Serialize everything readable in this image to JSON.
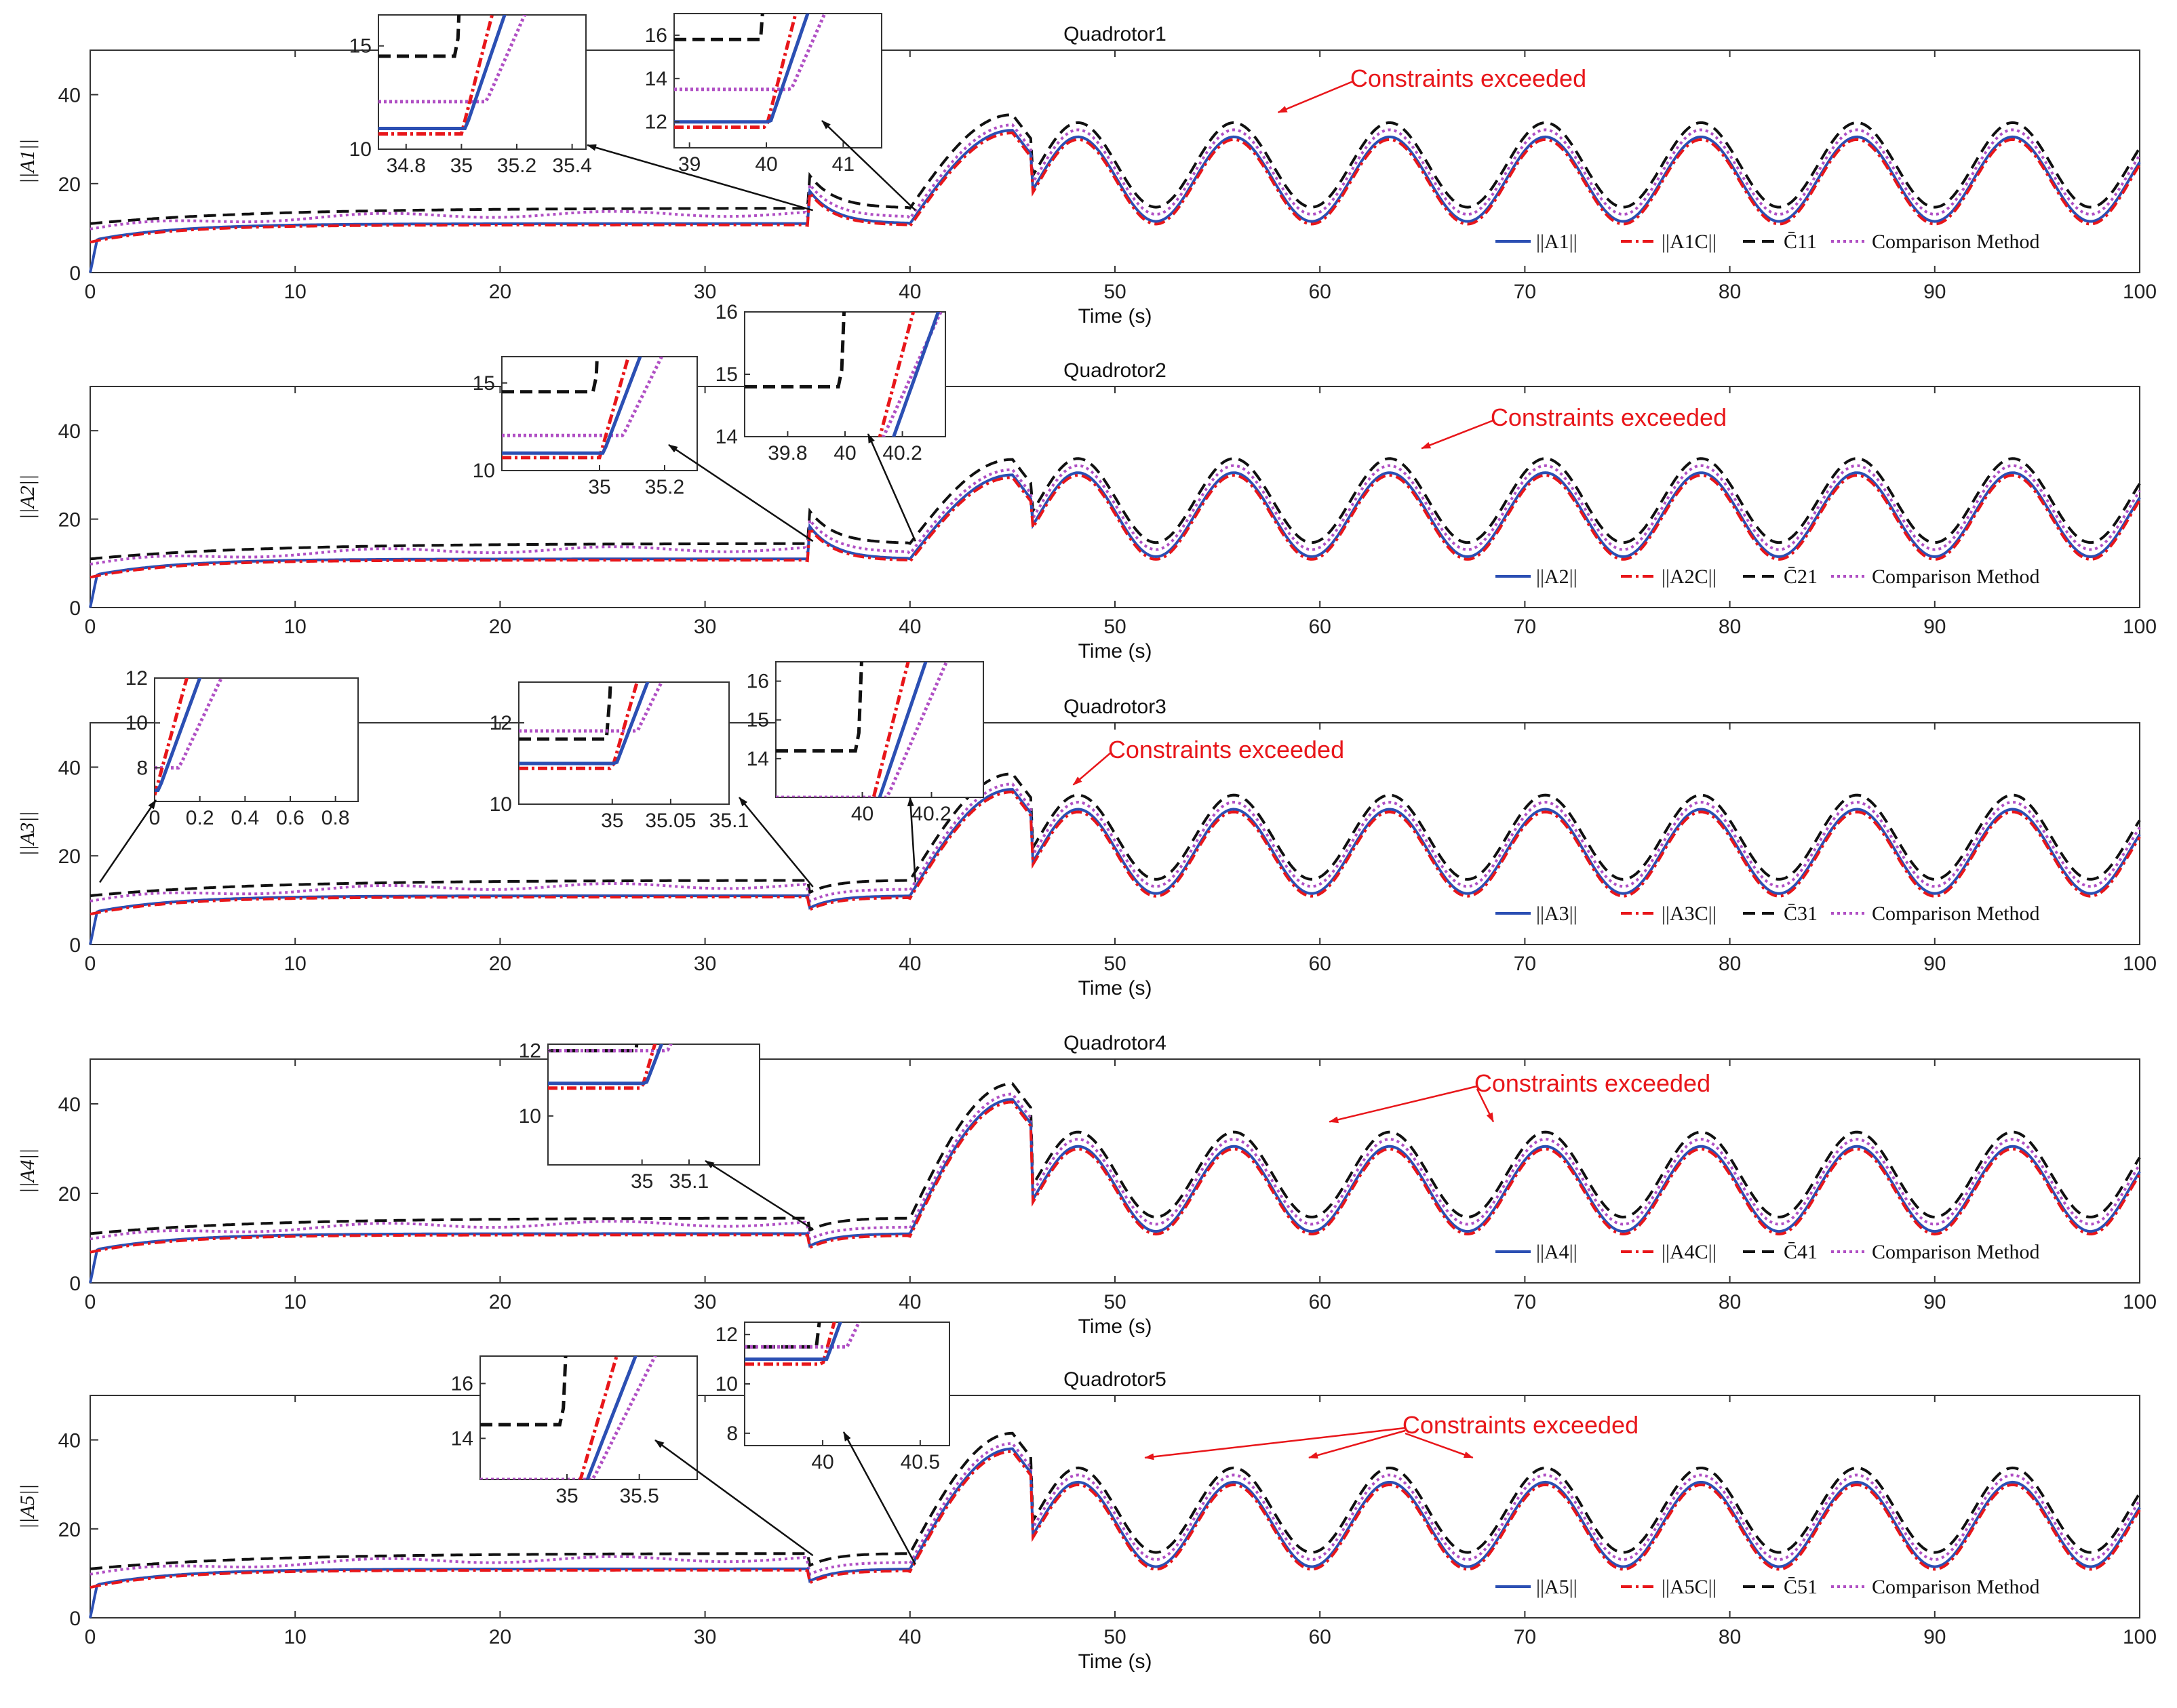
{
  "colors": {
    "norm_A": "#2b4fb3",
    "norm_AC": "#e8161a",
    "bound_C": "#111111",
    "comparison": "#b04fc4",
    "annotation": "#e8161a",
    "arrow": "#111111"
  },
  "chart_data": [
    {
      "type": "line",
      "title": "Quadrotor1",
      "xlabel": "Time (s)",
      "ylabel": "||A1||",
      "xlim": [
        0,
        100
      ],
      "ylim": [
        0,
        50
      ],
      "xticks": [
        "0",
        "10",
        "20",
        "30",
        "40",
        "50",
        "60",
        "70",
        "80",
        "90",
        "100"
      ],
      "yticks": [
        "0",
        "20",
        "40"
      ],
      "series_profile": {
        "a_base": 11,
        "early_wave_peak": 32,
        "period": 7.6,
        "phase": 8.3,
        "amp": 9.5
      },
      "legend": [
        "||A1||",
        "||A1C||",
        "C̄11",
        "Comparison Method"
      ],
      "annotation": "Constraints exceeded",
      "annotation_targets_x": [
        57.5
      ],
      "insets": [
        {
          "xlim": [
            34.7,
            35.45
          ],
          "ylim": [
            10,
            16.5
          ],
          "xticks": [
            "34.8",
            "35",
            "35.2",
            "35.4"
          ],
          "yticks": [
            "10",
            "15"
          ],
          "event": 35,
          "c_level": 14.5,
          "a_level": 11,
          "m_level": 12.3
        },
        {
          "xlim": [
            38.8,
            41.5
          ],
          "ylim": [
            10.8,
            17
          ],
          "xticks": [
            "39",
            "40",
            "41"
          ],
          "yticks": [
            "12",
            "14",
            "16"
          ],
          "event": 40,
          "c_level": 15.8,
          "a_level": 12,
          "m_level": 13.5
        }
      ]
    },
    {
      "type": "line",
      "title": "Quadrotor2",
      "xlabel": "Time (s)",
      "ylabel": "||A2||",
      "xlim": [
        0,
        100
      ],
      "ylim": [
        0,
        50
      ],
      "xticks": [
        "0",
        "10",
        "20",
        "30",
        "40",
        "50",
        "60",
        "70",
        "80",
        "90",
        "100"
      ],
      "yticks": [
        "0",
        "20",
        "40"
      ],
      "series_profile": {
        "a_base": 11,
        "early_wave_peak": 30,
        "period": 7.6,
        "phase": 8.3,
        "amp": 9.5
      },
      "legend": [
        "||A2||",
        "||A2C||",
        "C̄21",
        "Comparison Method"
      ],
      "annotation": "Constraints exceeded",
      "annotation_targets_x": [
        64.5
      ],
      "insets": [
        {
          "xlim": [
            34.7,
            35.3
          ],
          "ylim": [
            10,
            16.5
          ],
          "xticks": [
            "35",
            "35.2"
          ],
          "yticks": [
            "10",
            "15"
          ],
          "event": 35,
          "c_level": 14.5,
          "a_level": 11,
          "m_level": 12.0
        },
        {
          "xlim": [
            39.65,
            40.35
          ],
          "ylim": [
            14,
            16
          ],
          "xticks": [
            "39.8",
            "40",
            "40.2"
          ],
          "yticks": [
            "14",
            "15",
            "16"
          ],
          "event": 40,
          "c_level": 14.8,
          "a_level": 12,
          "m_level": 13.5
        }
      ]
    },
    {
      "type": "line",
      "title": "Quadrotor3",
      "xlabel": "Time (s)",
      "ylabel": "||A3||",
      "xlim": [
        0,
        100
      ],
      "ylim": [
        0,
        50
      ],
      "xticks": [
        "0",
        "10",
        "20",
        "30",
        "40",
        "50",
        "60",
        "70",
        "80",
        "90",
        "100"
      ],
      "yticks": [
        "0",
        "20",
        "40"
      ],
      "series_profile": {
        "a_base": 11,
        "early_wave_peak": 35,
        "period": 7.6,
        "phase": 8.3,
        "amp": 9.5
      },
      "legend": [
        "||A3||",
        "||A3C||",
        "C̄31",
        "Comparison Method"
      ],
      "annotation": "Constraints exceeded",
      "annotation_targets_x": [
        47.5
      ],
      "insets": [
        {
          "xlim": [
            0,
            0.9
          ],
          "ylim": [
            6.5,
            12
          ],
          "xticks": [
            "0",
            "0.2",
            "0.4",
            "0.6",
            "0.8"
          ],
          "yticks": [
            "8",
            "10",
            "12"
          ],
          "event": 0,
          "c_level": 11,
          "a_level": 7,
          "m_level": 8
        },
        {
          "xlim": [
            34.92,
            35.1
          ],
          "ylim": [
            10,
            13
          ],
          "xticks": [
            "35",
            "35.05",
            "35.1"
          ],
          "yticks": [
            "10",
            "12"
          ],
          "event": 35,
          "c_level": 11.6,
          "a_level": 11,
          "m_level": 11.8
        },
        {
          "xlim": [
            39.75,
            40.35
          ],
          "ylim": [
            13,
            16.5
          ],
          "xticks": [
            "40",
            "40.2"
          ],
          "yticks": [
            "14",
            "15",
            "16"
          ],
          "event": 40,
          "c_level": 14.2,
          "a_level": 12,
          "m_level": 13
        }
      ]
    },
    {
      "type": "line",
      "title": "Quadrotor4",
      "xlabel": "Time (s)",
      "ylabel": "||A4||",
      "xlim": [
        0,
        100
      ],
      "ylim": [
        0,
        50
      ],
      "xticks": [
        "0",
        "10",
        "20",
        "30",
        "40",
        "50",
        "60",
        "70",
        "80",
        "90",
        "100"
      ],
      "yticks": [
        "0",
        "20",
        "40"
      ],
      "series_profile": {
        "a_base": 11,
        "early_wave_peak": 41,
        "period": 7.6,
        "phase": 8.3,
        "amp": 9.5
      },
      "legend": [
        "||A4||",
        "||A4C||",
        "C̄41",
        "Comparison Method"
      ],
      "annotation": "Constraints exceeded",
      "annotation_targets_x": [
        60,
        68
      ],
      "insets": [
        {
          "xlim": [
            34.8,
            35.25
          ],
          "ylim": [
            8.5,
            12.2
          ],
          "xticks": [
            "35",
            "35.1"
          ],
          "yticks": [
            "10",
            "12"
          ],
          "event": 35,
          "c_level": 12,
          "a_level": 11,
          "m_level": 12
        }
      ]
    },
    {
      "type": "line",
      "title": "Quadrotor5",
      "xlabel": "Time (s)",
      "ylabel": "||A5||",
      "xlim": [
        0,
        100
      ],
      "ylim": [
        0,
        50
      ],
      "xticks": [
        "0",
        "10",
        "20",
        "30",
        "40",
        "50",
        "60",
        "70",
        "80",
        "90",
        "100"
      ],
      "yticks": [
        "0",
        "20",
        "40"
      ],
      "series_profile": {
        "a_base": 11,
        "early_wave_peak": 38,
        "period": 7.6,
        "phase": 8.3,
        "amp": 9.5
      },
      "legend": [
        "||A5||",
        "||A5C||",
        "C̄51",
        "Comparison Method"
      ],
      "annotation": "Constraints exceeded",
      "annotation_targets_x": [
        51,
        59,
        67
      ],
      "insets": [
        {
          "xlim": [
            34.4,
            35.9
          ],
          "ylim": [
            12.5,
            17
          ],
          "xticks": [
            "35",
            "35.5"
          ],
          "yticks": [
            "14",
            "16"
          ],
          "event": 35,
          "c_level": 14.5,
          "a_level": 11,
          "m_level": 12.5
        },
        {
          "xlim": [
            39.6,
            40.65
          ],
          "ylim": [
            7.5,
            12.5
          ],
          "xticks": [
            "40",
            "40.5"
          ],
          "yticks": [
            "8",
            "10",
            "12"
          ],
          "event": 40,
          "c_level": 11.5,
          "a_level": 11,
          "m_level": 11.5
        }
      ]
    }
  ]
}
